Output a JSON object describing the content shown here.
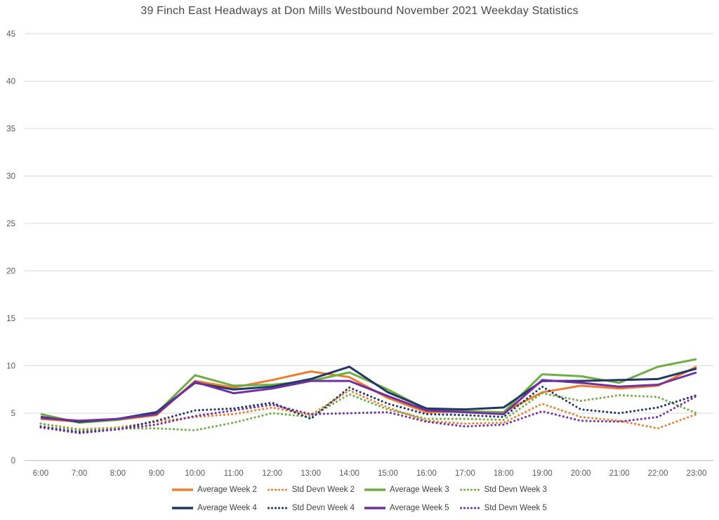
{
  "title": "39 Finch East Headways at Don Mills Westbound November 2021 Weekday Statistics",
  "axis": {
    "y_ticks": [
      0,
      5,
      10,
      15,
      20,
      25,
      30,
      35,
      40,
      45
    ],
    "grid_color": "#d9d9d9",
    "axis_line_color": "#bfbfbf",
    "tick_label_color": "#595959"
  },
  "legend": {
    "rows": [
      [
        0,
        1,
        2,
        3
      ],
      [
        4,
        5,
        6,
        7
      ]
    ]
  },
  "chart_data": {
    "type": "line",
    "title": "39 Finch East Headways at Don Mills Westbound November 2021 Weekday Statistics",
    "xlabel": "",
    "ylabel": "",
    "ylim": [
      0,
      45
    ],
    "grid": true,
    "legend_position": "bottom",
    "categories": [
      "6:00",
      "7:00",
      "8:00",
      "9:00",
      "10:00",
      "11:00",
      "12:00",
      "13:00",
      "14:00",
      "15:00",
      "16:00",
      "17:00",
      "18:00",
      "19:00",
      "20:00",
      "21:00",
      "22:00",
      "23:00"
    ],
    "series": [
      {
        "name": "Average Week 2",
        "color": "#ED7D31",
        "style": "solid",
        "values": [
          4.4,
          4.1,
          4.3,
          4.8,
          8.4,
          7.7,
          8.5,
          9.4,
          8.8,
          6.6,
          5.1,
          5.2,
          5.1,
          7.2,
          7.9,
          7.6,
          7.9,
          9.9
        ]
      },
      {
        "name": "Std Devn Week 2",
        "color": "#ED7D31",
        "style": "dotted",
        "values": [
          3.9,
          3.3,
          3.5,
          4.1,
          4.6,
          4.9,
          5.6,
          4.8,
          7.4,
          5.6,
          4.2,
          3.9,
          4.0,
          6.0,
          4.6,
          4.2,
          3.4,
          4.9
        ]
      },
      {
        "name": "Average Week 3",
        "color": "#70AD47",
        "style": "solid",
        "values": [
          4.9,
          4.0,
          4.3,
          5.0,
          9.0,
          7.9,
          8.0,
          8.4,
          9.3,
          7.5,
          5.4,
          5.2,
          5.1,
          9.1,
          8.9,
          8.2,
          9.9,
          10.7
        ]
      },
      {
        "name": "Std Devn Week 3",
        "color": "#70AD47",
        "style": "dotted",
        "values": [
          3.9,
          3.2,
          3.4,
          3.4,
          3.2,
          4.0,
          5.0,
          4.6,
          7.0,
          5.4,
          4.4,
          4.4,
          4.3,
          7.1,
          6.3,
          6.9,
          6.7,
          5.0
        ]
      },
      {
        "name": "Average Week 4",
        "color": "#1F3864",
        "style": "solid",
        "values": [
          4.6,
          4.1,
          4.4,
          5.1,
          8.2,
          7.5,
          7.8,
          8.6,
          9.9,
          7.2,
          5.5,
          5.4,
          5.6,
          8.4,
          8.4,
          8.5,
          8.6,
          9.7
        ]
      },
      {
        "name": "Std Devn Week 4",
        "color": "#1F3864",
        "style": "dotted",
        "values": [
          3.6,
          3.0,
          3.3,
          4.2,
          5.3,
          5.5,
          6.1,
          4.4,
          7.7,
          6.0,
          4.9,
          4.8,
          4.6,
          7.8,
          5.4,
          5.0,
          5.6,
          6.9
        ]
      },
      {
        "name": "Average Week 5",
        "color": "#7030A0",
        "style": "solid",
        "values": [
          4.5,
          4.2,
          4.4,
          4.9,
          8.3,
          7.1,
          7.6,
          8.4,
          8.4,
          6.8,
          5.3,
          5.1,
          4.9,
          8.5,
          8.2,
          7.8,
          8.0,
          9.3
        ]
      },
      {
        "name": "Std Devn Week 5",
        "color": "#7030A0",
        "style": "dotted",
        "values": [
          3.5,
          2.9,
          3.3,
          3.8,
          4.7,
          5.3,
          5.9,
          4.9,
          5.0,
          5.1,
          4.1,
          3.6,
          3.8,
          5.2,
          4.2,
          4.1,
          4.6,
          6.8
        ]
      }
    ]
  }
}
